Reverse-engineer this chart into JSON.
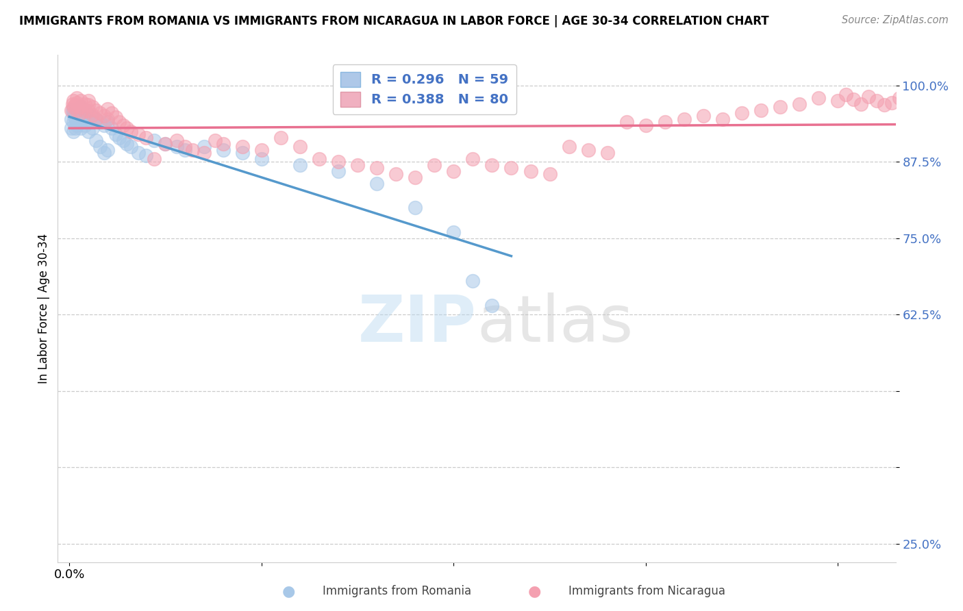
{
  "title": "IMMIGRANTS FROM ROMANIA VS IMMIGRANTS FROM NICARAGUA IN LABOR FORCE | AGE 30-34 CORRELATION CHART",
  "source": "Source: ZipAtlas.com",
  "ylabel": "In Labor Force | Age 30-34",
  "xlim": [
    -0.003,
    0.215
  ],
  "ylim": [
    0.22,
    1.05
  ],
  "ytick_vals": [
    1.0,
    0.875,
    0.75,
    0.625,
    0.5,
    0.375,
    0.25
  ],
  "ytick_labels": [
    "100.0%",
    "87.5%",
    "75.0%",
    "62.5%",
    "",
    "",
    "25.0%"
  ],
  "xtick_vals": [
    0.0,
    0.05,
    0.1,
    0.15,
    0.2
  ],
  "xtick_labels": [
    "0.0%",
    "",
    "",
    "",
    ""
  ],
  "romania_color": "#a8c8e8",
  "nicaragua_color": "#f4a0b0",
  "romania_line_color": "#5599cc",
  "nicaragua_line_color": "#e87090",
  "romania_R": 0.296,
  "romania_N": 59,
  "nicaragua_R": 0.388,
  "nicaragua_N": 80,
  "background_color": "#ffffff",
  "watermark": "ZIPatlas",
  "romania_x": [
    0.0005,
    0.0005,
    0.0008,
    0.001,
    0.001,
    0.001,
    0.0012,
    0.0015,
    0.0015,
    0.002,
    0.002,
    0.002,
    0.0025,
    0.0025,
    0.003,
    0.003,
    0.003,
    0.003,
    0.0035,
    0.004,
    0.004,
    0.004,
    0.0045,
    0.005,
    0.005,
    0.005,
    0.006,
    0.006,
    0.007,
    0.007,
    0.008,
    0.008,
    0.009,
    0.009,
    0.01,
    0.01,
    0.011,
    0.012,
    0.013,
    0.014,
    0.015,
    0.016,
    0.018,
    0.02,
    0.022,
    0.025,
    0.028,
    0.03,
    0.035,
    0.04,
    0.045,
    0.05,
    0.06,
    0.07,
    0.08,
    0.09,
    0.1,
    0.105,
    0.11
  ],
  "romania_y": [
    0.945,
    0.93,
    0.96,
    0.955,
    0.94,
    0.925,
    0.95,
    0.945,
    0.93,
    0.96,
    0.95,
    0.935,
    0.955,
    0.94,
    0.965,
    0.955,
    0.945,
    0.93,
    0.95,
    0.96,
    0.948,
    0.935,
    0.955,
    0.952,
    0.94,
    0.925,
    0.948,
    0.93,
    0.945,
    0.91,
    0.94,
    0.9,
    0.935,
    0.89,
    0.94,
    0.895,
    0.93,
    0.92,
    0.915,
    0.91,
    0.905,
    0.9,
    0.89,
    0.885,
    0.91,
    0.905,
    0.9,
    0.895,
    0.9,
    0.895,
    0.89,
    0.88,
    0.87,
    0.86,
    0.84,
    0.8,
    0.76,
    0.68,
    0.64
  ],
  "nicaragua_x": [
    0.0005,
    0.0008,
    0.001,
    0.001,
    0.0015,
    0.002,
    0.002,
    0.002,
    0.003,
    0.003,
    0.003,
    0.004,
    0.004,
    0.005,
    0.005,
    0.005,
    0.006,
    0.006,
    0.007,
    0.007,
    0.008,
    0.009,
    0.01,
    0.01,
    0.011,
    0.012,
    0.013,
    0.014,
    0.015,
    0.016,
    0.018,
    0.02,
    0.022,
    0.025,
    0.028,
    0.03,
    0.032,
    0.035,
    0.038,
    0.04,
    0.045,
    0.05,
    0.055,
    0.06,
    0.065,
    0.07,
    0.075,
    0.08,
    0.085,
    0.09,
    0.095,
    0.1,
    0.105,
    0.11,
    0.115,
    0.12,
    0.125,
    0.13,
    0.135,
    0.14,
    0.145,
    0.15,
    0.155,
    0.16,
    0.165,
    0.17,
    0.175,
    0.18,
    0.185,
    0.19,
    0.195,
    0.2,
    0.202,
    0.204,
    0.206,
    0.208,
    0.21,
    0.212,
    0.214,
    0.216
  ],
  "nicaragua_y": [
    0.96,
    0.97,
    0.965,
    0.975,
    0.968,
    0.972,
    0.96,
    0.98,
    0.975,
    0.965,
    0.955,
    0.97,
    0.958,
    0.968,
    0.958,
    0.975,
    0.965,
    0.952,
    0.96,
    0.945,
    0.955,
    0.95,
    0.962,
    0.945,
    0.955,
    0.948,
    0.94,
    0.935,
    0.93,
    0.925,
    0.92,
    0.915,
    0.88,
    0.905,
    0.91,
    0.9,
    0.895,
    0.89,
    0.91,
    0.905,
    0.9,
    0.895,
    0.915,
    0.9,
    0.88,
    0.875,
    0.87,
    0.865,
    0.855,
    0.85,
    0.87,
    0.86,
    0.88,
    0.87,
    0.865,
    0.86,
    0.855,
    0.9,
    0.895,
    0.89,
    0.94,
    0.935,
    0.94,
    0.945,
    0.95,
    0.945,
    0.955,
    0.96,
    0.965,
    0.97,
    0.98,
    0.975,
    0.985,
    0.978,
    0.97,
    0.982,
    0.975,
    0.968,
    0.972,
    0.98
  ]
}
